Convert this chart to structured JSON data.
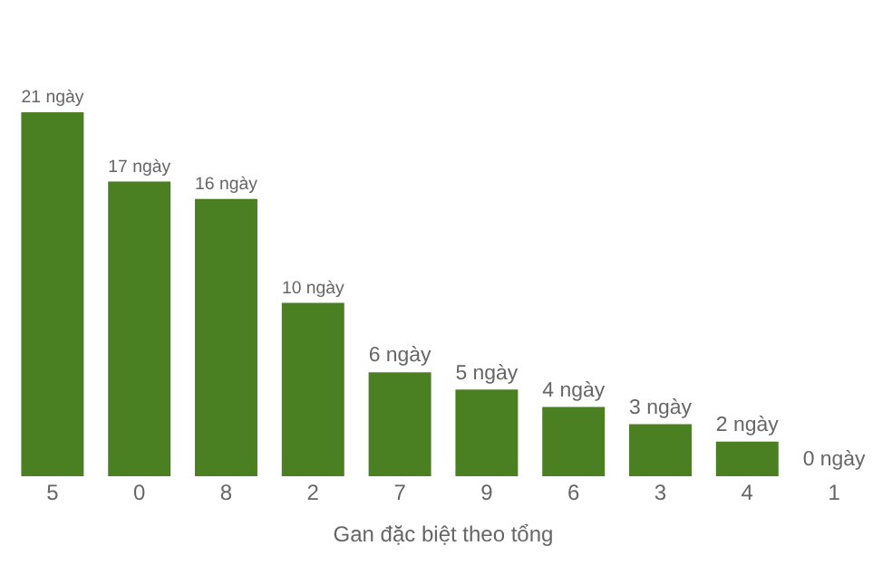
{
  "chart_data": {
    "type": "bar",
    "xlabel": "Gan đặc biệt theo tổng",
    "categories": [
      "5",
      "0",
      "8",
      "2",
      "7",
      "9",
      "6",
      "3",
      "4",
      "1"
    ],
    "values": [
      21,
      17,
      16,
      10,
      6,
      5,
      4,
      3,
      2,
      0
    ],
    "value_labels": [
      "21 ngày",
      "17 ngày",
      "16 ngày",
      "10 ngày",
      "6 ngày",
      "5 ngày",
      "4 ngày",
      "3 ngày",
      "2 ngày",
      "0 ngày"
    ],
    "color": "#4a7f22",
    "grid": false,
    "legend": false
  }
}
